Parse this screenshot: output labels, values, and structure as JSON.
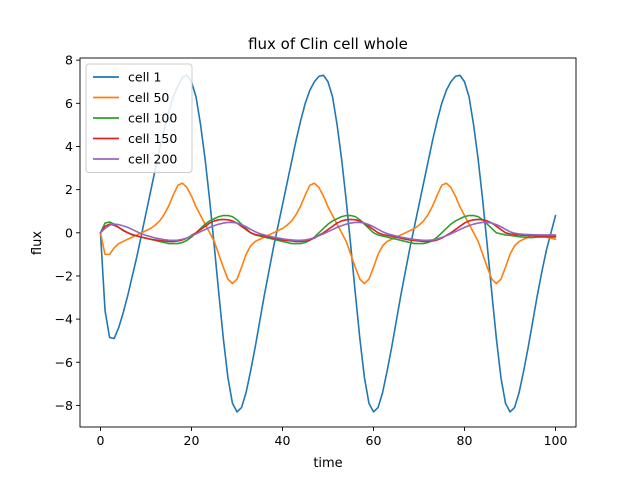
{
  "chart_data": {
    "type": "line",
    "title": "flux of Clin cell whole",
    "xlabel": "time",
    "ylabel": "flux",
    "xlim": [
      -4.5,
      104.5
    ],
    "ylim": [
      -9.0,
      8.1
    ],
    "xticks": [
      0,
      20,
      40,
      60,
      80,
      100
    ],
    "yticks": [
      -8,
      -6,
      -4,
      -2,
      0,
      2,
      4,
      6,
      8
    ],
    "grid": false,
    "legend_position": "upper-left",
    "series": [
      {
        "name": "cell 1",
        "color": "#1f77b4",
        "x": [
          0,
          1,
          2,
          3,
          4,
          5,
          6,
          7,
          8,
          9,
          10,
          11,
          12,
          13,
          14,
          15,
          16,
          17,
          18,
          19,
          20,
          21,
          22,
          23,
          24,
          25,
          26,
          27,
          28,
          29,
          30,
          31,
          32,
          33,
          34,
          35,
          36,
          37,
          38,
          39,
          40,
          41,
          42,
          43,
          44,
          45,
          46,
          47,
          48,
          49,
          50,
          51,
          52,
          53,
          54,
          55,
          56,
          57,
          58,
          59,
          60,
          61,
          62,
          63,
          64,
          65,
          66,
          67,
          68,
          69,
          70,
          71,
          72,
          73,
          74,
          75,
          76,
          77,
          78,
          79,
          80,
          81,
          82,
          83,
          84,
          85,
          86,
          87,
          88,
          89,
          90,
          91,
          92,
          93,
          94,
          95,
          96,
          97,
          98,
          99,
          100
        ],
        "y": [
          0.0,
          -3.6,
          -4.85,
          -4.9,
          -4.4,
          -3.7,
          -2.9,
          -2.0,
          -1.1,
          -0.1,
          0.9,
          1.9,
          2.9,
          3.9,
          4.8,
          5.6,
          6.3,
          6.8,
          7.2,
          7.3,
          7.0,
          6.3,
          5.0,
          3.4,
          1.5,
          -0.6,
          -2.8,
          -4.9,
          -6.7,
          -7.9,
          -8.3,
          -8.1,
          -7.4,
          -6.4,
          -5.3,
          -4.1,
          -2.9,
          -1.8,
          -0.7,
          0.3,
          1.3,
          2.3,
          3.3,
          4.3,
          5.2,
          6.0,
          6.6,
          7.0,
          7.25,
          7.3,
          7.0,
          6.3,
          5.0,
          3.4,
          1.5,
          -0.6,
          -2.8,
          -4.9,
          -6.7,
          -7.9,
          -8.3,
          -8.1,
          -7.4,
          -6.4,
          -5.3,
          -4.1,
          -2.9,
          -1.8,
          -0.7,
          0.3,
          1.3,
          2.3,
          3.3,
          4.3,
          5.2,
          6.0,
          6.6,
          7.0,
          7.25,
          7.3,
          7.0,
          6.3,
          5.0,
          3.4,
          1.5,
          -0.6,
          -2.8,
          -4.9,
          -6.7,
          -7.9,
          -8.3,
          -8.1,
          -7.4,
          -6.4,
          -5.3,
          -4.1,
          -2.9,
          -1.8,
          -0.8,
          0.0,
          0.8
        ]
      },
      {
        "name": "cell 50",
        "color": "#ff7f0e",
        "x": [
          0,
          1,
          2,
          3,
          4,
          5,
          6,
          7,
          8,
          9,
          10,
          11,
          12,
          13,
          14,
          15,
          16,
          17,
          18,
          19,
          20,
          21,
          22,
          23,
          24,
          25,
          26,
          27,
          28,
          29,
          30,
          31,
          32,
          33,
          34,
          35,
          36,
          37,
          38,
          39,
          40,
          41,
          42,
          43,
          44,
          45,
          46,
          47,
          48,
          49,
          50,
          51,
          52,
          53,
          54,
          55,
          56,
          57,
          58,
          59,
          60,
          61,
          62,
          63,
          64,
          65,
          66,
          67,
          68,
          69,
          70,
          71,
          72,
          73,
          74,
          75,
          76,
          77,
          78,
          79,
          80,
          81,
          82,
          83,
          84,
          85,
          86,
          87,
          88,
          89,
          90,
          91,
          92,
          93,
          94,
          95,
          96,
          97,
          98,
          99,
          100
        ],
        "y": [
          0.0,
          -1.0,
          -1.0,
          -0.7,
          -0.5,
          -0.4,
          -0.3,
          -0.2,
          -0.1,
          0.0,
          0.1,
          0.2,
          0.35,
          0.55,
          0.85,
          1.25,
          1.75,
          2.2,
          2.3,
          2.1,
          1.7,
          1.2,
          0.8,
          0.4,
          0.0,
          -0.4,
          -1.0,
          -1.6,
          -2.15,
          -2.35,
          -2.15,
          -1.6,
          -1.0,
          -0.6,
          -0.4,
          -0.3,
          -0.2,
          -0.1,
          0.0,
          0.1,
          0.2,
          0.35,
          0.55,
          0.85,
          1.25,
          1.75,
          2.2,
          2.3,
          2.1,
          1.7,
          1.2,
          0.8,
          0.4,
          0.0,
          -0.4,
          -1.0,
          -1.6,
          -2.15,
          -2.35,
          -2.15,
          -1.6,
          -1.0,
          -0.6,
          -0.4,
          -0.3,
          -0.2,
          -0.1,
          0.0,
          0.1,
          0.2,
          0.35,
          0.55,
          0.85,
          1.25,
          1.75,
          2.2,
          2.3,
          2.1,
          1.7,
          1.2,
          0.8,
          0.4,
          0.0,
          -0.4,
          -1.0,
          -1.6,
          -2.15,
          -2.35,
          -2.15,
          -1.6,
          -1.0,
          -0.6,
          -0.4,
          -0.3,
          -0.2,
          -0.1,
          -0.1,
          -0.15,
          -0.2,
          -0.25,
          -0.3
        ]
      },
      {
        "name": "cell 100",
        "color": "#2ca02c",
        "x": [
          0,
          1,
          2,
          3,
          4,
          5,
          6,
          7,
          8,
          9,
          10,
          11,
          12,
          13,
          14,
          15,
          16,
          17,
          18,
          19,
          20,
          21,
          22,
          23,
          24,
          25,
          26,
          27,
          28,
          29,
          30,
          31,
          32,
          33,
          34,
          35,
          36,
          37,
          38,
          39,
          40,
          41,
          42,
          43,
          44,
          45,
          46,
          47,
          48,
          49,
          50,
          51,
          52,
          53,
          54,
          55,
          56,
          57,
          58,
          59,
          60,
          61,
          62,
          63,
          64,
          65,
          66,
          67,
          68,
          69,
          70,
          71,
          72,
          73,
          74,
          75,
          76,
          77,
          78,
          79,
          80,
          81,
          82,
          83,
          84,
          85,
          86,
          87,
          88,
          89,
          90,
          91,
          92,
          93,
          94,
          95,
          96,
          97,
          98,
          99,
          100
        ],
        "y": [
          0.0,
          0.45,
          0.5,
          0.4,
          0.25,
          0.1,
          0.0,
          -0.1,
          -0.15,
          -0.2,
          -0.25,
          -0.3,
          -0.35,
          -0.4,
          -0.45,
          -0.5,
          -0.5,
          -0.5,
          -0.45,
          -0.35,
          -0.2,
          0.0,
          0.2,
          0.4,
          0.55,
          0.65,
          0.75,
          0.8,
          0.8,
          0.75,
          0.6,
          0.4,
          0.2,
          0.0,
          -0.1,
          -0.15,
          -0.2,
          -0.25,
          -0.3,
          -0.35,
          -0.4,
          -0.45,
          -0.5,
          -0.5,
          -0.5,
          -0.45,
          -0.35,
          -0.2,
          0.0,
          0.2,
          0.4,
          0.55,
          0.65,
          0.75,
          0.8,
          0.8,
          0.75,
          0.6,
          0.4,
          0.2,
          0.0,
          -0.1,
          -0.15,
          -0.2,
          -0.25,
          -0.3,
          -0.35,
          -0.4,
          -0.45,
          -0.5,
          -0.5,
          -0.5,
          -0.45,
          -0.35,
          -0.2,
          0.0,
          0.2,
          0.4,
          0.55,
          0.65,
          0.75,
          0.8,
          0.8,
          0.75,
          0.6,
          0.4,
          0.2,
          0.0,
          -0.05,
          -0.1,
          -0.12,
          -0.15,
          -0.18,
          -0.2,
          -0.22,
          -0.22,
          -0.2,
          -0.2,
          -0.2,
          -0.2,
          -0.2
        ]
      },
      {
        "name": "cell 150",
        "color": "#d62728",
        "x": [
          0,
          1,
          2,
          3,
          4,
          5,
          6,
          7,
          8,
          9,
          10,
          11,
          12,
          13,
          14,
          15,
          16,
          17,
          18,
          19,
          20,
          21,
          22,
          23,
          24,
          25,
          26,
          27,
          28,
          29,
          30,
          31,
          32,
          33,
          34,
          35,
          36,
          37,
          38,
          39,
          40,
          41,
          42,
          43,
          44,
          45,
          46,
          47,
          48,
          49,
          50,
          51,
          52,
          53,
          54,
          55,
          56,
          57,
          58,
          59,
          60,
          61,
          62,
          63,
          64,
          65,
          66,
          67,
          68,
          69,
          70,
          71,
          72,
          73,
          74,
          75,
          76,
          77,
          78,
          79,
          80,
          81,
          82,
          83,
          84,
          85,
          86,
          87,
          88,
          89,
          90,
          91,
          92,
          93,
          94,
          95,
          96,
          97,
          98,
          99,
          100
        ],
        "y": [
          0.0,
          0.3,
          0.4,
          0.35,
          0.25,
          0.12,
          0.0,
          -0.08,
          -0.15,
          -0.2,
          -0.25,
          -0.3,
          -0.33,
          -0.36,
          -0.38,
          -0.4,
          -0.4,
          -0.38,
          -0.33,
          -0.25,
          -0.12,
          0.0,
          0.15,
          0.3,
          0.45,
          0.55,
          0.6,
          0.62,
          0.6,
          0.55,
          0.45,
          0.3,
          0.15,
          0.0,
          -0.08,
          -0.12,
          -0.16,
          -0.2,
          -0.25,
          -0.3,
          -0.33,
          -0.36,
          -0.38,
          -0.4,
          -0.4,
          -0.38,
          -0.33,
          -0.25,
          -0.12,
          0.0,
          0.15,
          0.3,
          0.45,
          0.55,
          0.6,
          0.62,
          0.6,
          0.55,
          0.45,
          0.3,
          0.15,
          0.0,
          -0.08,
          -0.12,
          -0.16,
          -0.2,
          -0.25,
          -0.3,
          -0.33,
          -0.36,
          -0.38,
          -0.4,
          -0.4,
          -0.38,
          -0.33,
          -0.25,
          -0.12,
          0.0,
          0.15,
          0.3,
          0.45,
          0.55,
          0.6,
          0.62,
          0.6,
          0.55,
          0.45,
          0.3,
          0.15,
          0.0,
          -0.05,
          -0.08,
          -0.1,
          -0.12,
          -0.13,
          -0.14,
          -0.15,
          -0.15,
          -0.15,
          -0.15,
          -0.15
        ]
      },
      {
        "name": "cell 200",
        "color": "#9467bd",
        "x": [
          0,
          1,
          2,
          3,
          4,
          5,
          6,
          7,
          8,
          9,
          10,
          11,
          12,
          13,
          14,
          15,
          16,
          17,
          18,
          19,
          20,
          21,
          22,
          23,
          24,
          25,
          26,
          27,
          28,
          29,
          30,
          31,
          32,
          33,
          34,
          35,
          36,
          37,
          38,
          39,
          40,
          41,
          42,
          43,
          44,
          45,
          46,
          47,
          48,
          49,
          50,
          51,
          52,
          53,
          54,
          55,
          56,
          57,
          58,
          59,
          60,
          61,
          62,
          63,
          64,
          65,
          66,
          67,
          68,
          69,
          70,
          71,
          72,
          73,
          74,
          75,
          76,
          77,
          78,
          79,
          80,
          81,
          82,
          83,
          84,
          85,
          86,
          87,
          88,
          89,
          90,
          91,
          92,
          93,
          94,
          95,
          96,
          97,
          98,
          99,
          100
        ],
        "y": [
          0.0,
          0.2,
          0.35,
          0.4,
          0.38,
          0.32,
          0.25,
          0.15,
          0.05,
          -0.05,
          -0.12,
          -0.18,
          -0.24,
          -0.28,
          -0.32,
          -0.34,
          -0.35,
          -0.34,
          -0.3,
          -0.24,
          -0.15,
          -0.05,
          0.05,
          0.15,
          0.25,
          0.33,
          0.4,
          0.45,
          0.48,
          0.48,
          0.45,
          0.38,
          0.28,
          0.16,
          0.05,
          -0.04,
          -0.1,
          -0.15,
          -0.2,
          -0.24,
          -0.28,
          -0.31,
          -0.33,
          -0.35,
          -0.35,
          -0.33,
          -0.29,
          -0.22,
          -0.14,
          -0.05,
          0.05,
          0.15,
          0.25,
          0.33,
          0.4,
          0.45,
          0.48,
          0.48,
          0.45,
          0.38,
          0.28,
          0.16,
          0.05,
          -0.04,
          -0.1,
          -0.15,
          -0.2,
          -0.24,
          -0.28,
          -0.31,
          -0.33,
          -0.35,
          -0.35,
          -0.33,
          -0.29,
          -0.22,
          -0.14,
          -0.05,
          0.05,
          0.15,
          0.25,
          0.33,
          0.4,
          0.45,
          0.48,
          0.48,
          0.45,
          0.38,
          0.28,
          0.16,
          0.05,
          -0.02,
          -0.05,
          -0.07,
          -0.08,
          -0.09,
          -0.1,
          -0.1,
          -0.1,
          -0.1,
          -0.1
        ]
      }
    ]
  }
}
